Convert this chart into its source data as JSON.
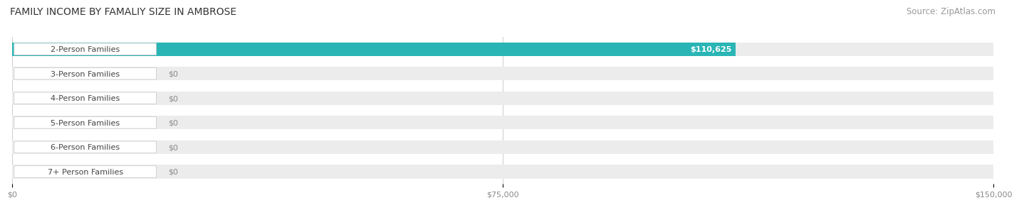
{
  "title": "FAMILY INCOME BY FAMALIY SIZE IN AMBROSE",
  "source": "Source: ZipAtlas.com",
  "categories": [
    "2-Person Families",
    "3-Person Families",
    "4-Person Families",
    "5-Person Families",
    "6-Person Families",
    "7+ Person Families"
  ],
  "values": [
    110625,
    0,
    0,
    0,
    0,
    0
  ],
  "bar_colors": [
    "#2ab5b5",
    "#a8a8d8",
    "#f48098",
    "#f8c88a",
    "#f0a0a8",
    "#a0b8e0"
  ],
  "xlim": [
    0,
    150000
  ],
  "xticks": [
    0,
    75000,
    150000
  ],
  "xtick_labels": [
    "$0",
    "$75,000",
    "$150,000"
  ],
  "bar_height": 0.55,
  "title_fontsize": 10,
  "source_fontsize": 8.5,
  "label_fontsize": 8,
  "value_label_color_first": "#ffffff",
  "value_label_color_rest": "#555555"
}
